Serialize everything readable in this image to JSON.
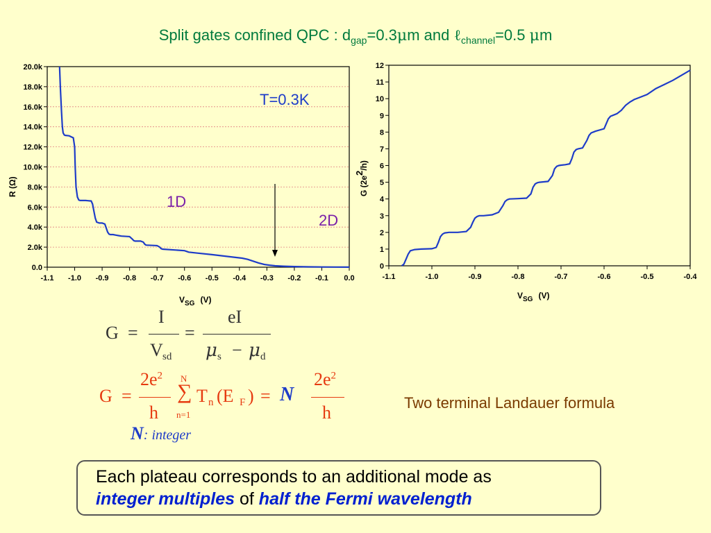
{
  "title": {
    "prefix": "Split gates confined QPC  :   d",
    "gap_sub": "gap",
    "gap_value": "=0.3",
    "mu": "μ",
    "unit_m_and": "m and ",
    "ell": "ℓ",
    "channel_sub": "channel",
    "channel_value": "=0.5 ",
    "unit_m": "m"
  },
  "colors": {
    "background": "#FFFFCC",
    "title": "#007A3D",
    "curve": "#1E3CC8",
    "equation_red": "#E63A10",
    "annotation_purple": "#7A1FA8",
    "caption_brown": "#7A3A00"
  },
  "chart_data": [
    {
      "type": "line",
      "annotations": [
        "T=0.3K",
        "1D",
        "2D"
      ],
      "xlabel": "V_SG (V)",
      "xlabel_main": "V",
      "xlabel_sub": "SG",
      "xlabel_unit": "(V)",
      "ylabel": "R (Ω)",
      "xlim": [
        -1.1,
        0.0
      ],
      "ylim": [
        0,
        20000
      ],
      "x_ticks": [
        "-1.1",
        "-1.0",
        "-0.9",
        "-0.8",
        "-0.7",
        "-0.6",
        "-0.5",
        "-0.4",
        "-0.3",
        "-0.2",
        "-0.1",
        "0.0"
      ],
      "y_ticks": [
        "0.0",
        "2.0k",
        "4.0k",
        "6.0k",
        "8.0k",
        "10.0k",
        "12.0k",
        "14.0k",
        "16.0k",
        "18.0k",
        "20.0k"
      ],
      "grid": "horizontal dotted",
      "series": [
        {
          "x": [
            -1.055,
            -1.052,
            -1.048,
            -1.045,
            -1.042,
            -1.038,
            -1.035,
            -1.02,
            -1.005,
            -1.0,
            -0.998,
            -0.995,
            -0.99,
            -0.985,
            -0.98,
            -0.96,
            -0.94,
            -0.935,
            -0.93,
            -0.925,
            -0.92,
            -0.91,
            -0.9,
            -0.89,
            -0.885,
            -0.88,
            -0.875,
            -0.87,
            -0.86,
            -0.85,
            -0.84,
            -0.83,
            -0.8,
            -0.79,
            -0.785,
            -0.78,
            -0.76,
            -0.75,
            -0.745,
            -0.74,
            -0.7,
            -0.69,
            -0.685,
            -0.68,
            -0.6,
            -0.59,
            -0.585,
            -0.55,
            -0.5,
            -0.42,
            -0.39,
            -0.37,
            -0.35,
            -0.33,
            -0.31,
            -0.29,
            -0.27,
            -0.24,
            -0.2,
            -0.15,
            -0.1,
            -0.05,
            0.0
          ],
          "y": [
            20000,
            17800,
            15500,
            14000,
            13400,
            13200,
            13150,
            13100,
            12900,
            12000,
            10000,
            8000,
            7000,
            6700,
            6650,
            6650,
            6600,
            6300,
            5600,
            4900,
            4500,
            4400,
            4400,
            4300,
            3900,
            3500,
            3300,
            3250,
            3250,
            3200,
            3150,
            3100,
            3050,
            2800,
            2650,
            2600,
            2600,
            2500,
            2300,
            2200,
            2150,
            2000,
            1850,
            1800,
            1650,
            1550,
            1500,
            1400,
            1250,
            1000,
            900,
            780,
            600,
            420,
            280,
            200,
            140,
            100,
            60,
            35,
            20,
            12,
            5
          ]
        }
      ]
    },
    {
      "type": "line",
      "xlabel": "V_SG (V)",
      "xlabel_main": "V",
      "xlabel_sub": "SG",
      "xlabel_unit": "(V)",
      "ylabel": "G (2e²/h)",
      "ylabel_main": "G (2e",
      "ylabel_sup": "2",
      "ylabel_rest": "/h)",
      "xlim": [
        -1.1,
        -0.4
      ],
      "ylim": [
        0,
        12
      ],
      "x_ticks": [
        "-1.1",
        "-1.0",
        "-0.9",
        "-0.8",
        "-0.7",
        "-0.6",
        "-0.5",
        "-0.4"
      ],
      "y_ticks": [
        "0",
        "1",
        "2",
        "3",
        "4",
        "5",
        "6",
        "7",
        "8",
        "9",
        "10",
        "11",
        "12"
      ],
      "grid": "none",
      "series": [
        {
          "x": [
            -1.07,
            -1.065,
            -1.06,
            -1.055,
            -1.05,
            -1.04,
            -1.025,
            -1.0,
            -0.99,
            -0.985,
            -0.98,
            -0.975,
            -0.97,
            -0.96,
            -0.94,
            -0.92,
            -0.91,
            -0.905,
            -0.9,
            -0.895,
            -0.89,
            -0.88,
            -0.86,
            -0.845,
            -0.835,
            -0.83,
            -0.825,
            -0.82,
            -0.8,
            -0.78,
            -0.77,
            -0.765,
            -0.76,
            -0.755,
            -0.75,
            -0.73,
            -0.72,
            -0.715,
            -0.71,
            -0.705,
            -0.7,
            -0.69,
            -0.68,
            -0.675,
            -0.67,
            -0.665,
            -0.66,
            -0.65,
            -0.64,
            -0.635,
            -0.63,
            -0.625,
            -0.62,
            -0.6,
            -0.595,
            -0.59,
            -0.585,
            -0.58,
            -0.57,
            -0.56,
            -0.55,
            -0.54,
            -0.53,
            -0.52,
            -0.5,
            -0.48,
            -0.46,
            -0.44,
            -0.42,
            -0.4
          ],
          "y": [
            0,
            0.1,
            0.4,
            0.7,
            0.9,
            0.97,
            1.0,
            1.02,
            1.1,
            1.4,
            1.75,
            1.9,
            1.97,
            2.0,
            2.0,
            2.05,
            2.3,
            2.6,
            2.85,
            2.95,
            3.0,
            3.0,
            3.05,
            3.2,
            3.6,
            3.85,
            3.95,
            4.0,
            4.02,
            4.05,
            4.3,
            4.7,
            4.9,
            4.97,
            5.0,
            5.05,
            5.4,
            5.8,
            5.95,
            6.0,
            6.02,
            6.05,
            6.1,
            6.4,
            6.8,
            6.95,
            7.0,
            7.05,
            7.5,
            7.8,
            7.95,
            8.0,
            8.05,
            8.2,
            8.5,
            8.8,
            8.95,
            9.0,
            9.1,
            9.3,
            9.6,
            9.8,
            9.95,
            10.05,
            10.25,
            10.6,
            10.85,
            11.1,
            11.4,
            11.7
          ]
        }
      ]
    }
  ],
  "equations": {
    "eq1": {
      "lhs": "G",
      "eq": "=",
      "num1": "I",
      "den1": "V",
      "den1_sub": "sd",
      "num2": "eI",
      "mu": "μ",
      "mu_s_sub": "s",
      "minus": "−",
      "mu_d_sub": "d"
    },
    "eq2": {
      "lhs": "G",
      "eq": "=",
      "frac_num": "2e",
      "frac_sup": "2",
      "frac_den": "h",
      "sum_top": "N",
      "sum_sym": "∑",
      "sum_bottom": "n=1",
      "T": "T",
      "T_sub": "n",
      "E_open": "(E",
      "E_sub": "F",
      "E_close": ")",
      "eq_after": "=",
      "N": "N",
      "frac2_num": "2e",
      "frac2_sup": "2",
      "frac2_den": "h"
    }
  },
  "n_integer": {
    "N": "N",
    "rest": ": integer"
  },
  "landauer_caption": "Two terminal Landauer formula",
  "plateau_box": {
    "line1": "Each plateau corresponds to an additional mode as",
    "hl1": "integer multiples",
    "of": " of ",
    "hl2": "half the Fermi wavelength"
  }
}
